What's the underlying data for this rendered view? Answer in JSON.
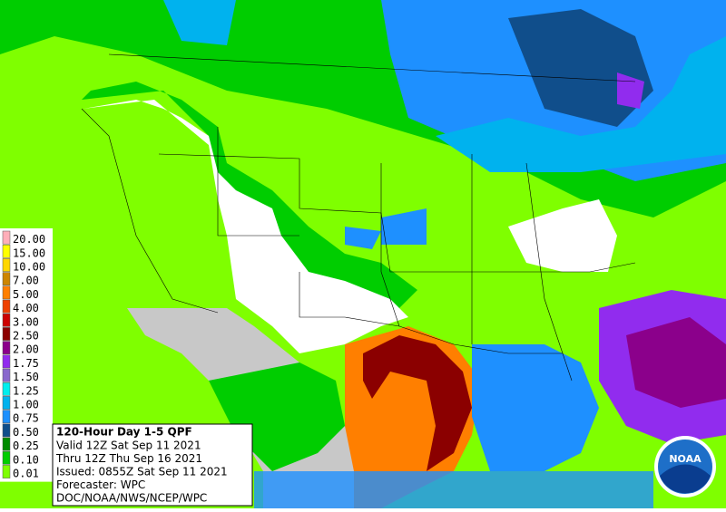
{
  "legend": [
    {
      "label": "20.00",
      "color": "#ffaeb9"
    },
    {
      "label": "15.00",
      "color": "#ffff00"
    },
    {
      "label": "10.00",
      "color": "#ffd700"
    },
    {
      "label": "7.00",
      "color": "#cd8500"
    },
    {
      "label": "5.00",
      "color": "#ff7f00"
    },
    {
      "label": "4.00",
      "color": "#ee4000"
    },
    {
      "label": "3.00",
      "color": "#cd0000"
    },
    {
      "label": "2.50",
      "color": "#8b0000"
    },
    {
      "label": "2.00",
      "color": "#8b008b"
    },
    {
      "label": "1.75",
      "color": "#912cee"
    },
    {
      "label": "1.50",
      "color": "#8968cd"
    },
    {
      "label": "1.25",
      "color": "#00eeee"
    },
    {
      "label": "1.00",
      "color": "#00b2ee"
    },
    {
      "label": "0.75",
      "color": "#1e90ff"
    },
    {
      "label": "0.50",
      "color": "#104e8b"
    },
    {
      "label": "0.25",
      "color": "#008b00"
    },
    {
      "label": "0.10",
      "color": "#00cd00"
    },
    {
      "label": "0.01",
      "color": "#7fff00"
    }
  ],
  "info": {
    "title": "120-Hour Day 1-5 QPF",
    "lines": [
      "Valid 12Z Sat Sep 11 2021",
      "Thru 12Z Thu Sep 16 2021",
      "Issued: 0855Z Sat Sep 11 2021",
      "Forecaster: WPC",
      "DOC/NOAA/NWS/NCEP/WPC"
    ]
  },
  "logo": "NOAA"
}
